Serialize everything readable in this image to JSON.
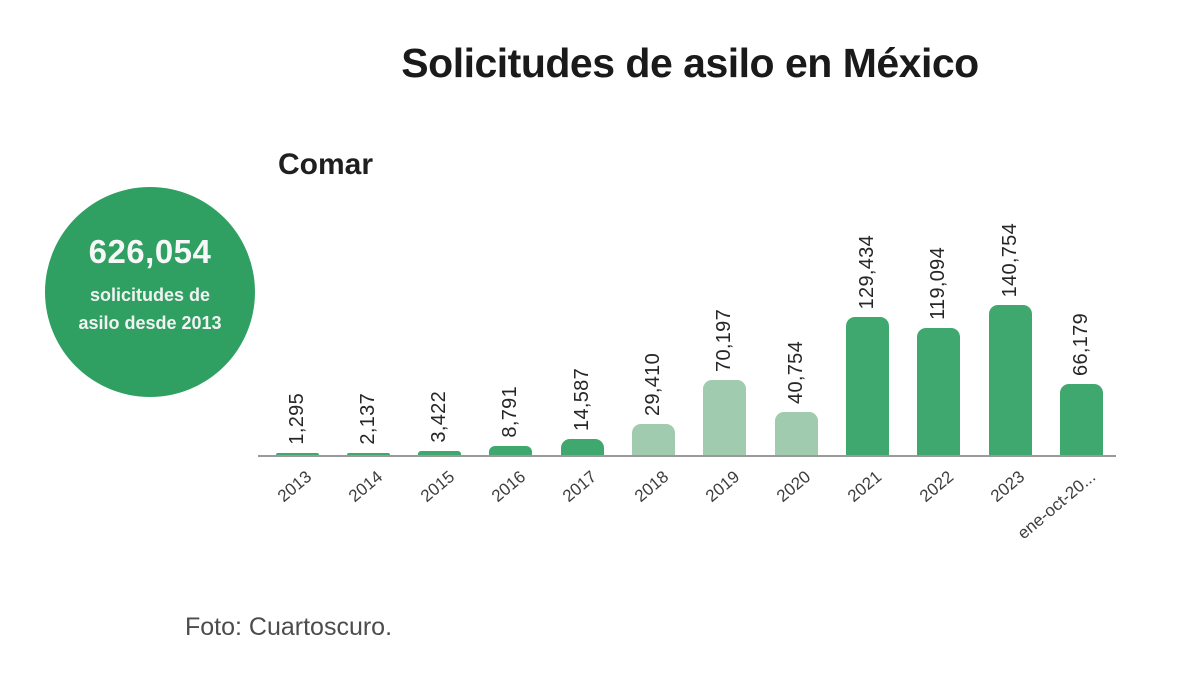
{
  "header": {
    "title": "Solicitudes de asilo en México",
    "subtitle": "Comar"
  },
  "badge": {
    "value": "626,054",
    "line1": "solicitudes de",
    "line2": "asilo desde 2013"
  },
  "footer": {
    "credit": "Foto: Cuartoscuro."
  },
  "colors": {
    "bar_dark": "#3fa86e",
    "bar_light": "#a0cbae",
    "badge_bg": "#2fa062",
    "axis": "#9a9a9a",
    "title_text": "#1a1a1a",
    "badge_text": "#f7f7f7"
  },
  "chart_data": {
    "type": "bar",
    "title": "Solicitudes de asilo en México",
    "subtitle": "Comar",
    "categories": [
      "2013",
      "2014",
      "2015",
      "2016",
      "2017",
      "2018",
      "2019",
      "2020",
      "2021",
      "2022",
      "2023",
      "ene-oct-20..."
    ],
    "values": [
      1295,
      2137,
      3422,
      8791,
      14587,
      29410,
      70197,
      40754,
      129434,
      119094,
      140754,
      66179
    ],
    "value_labels": [
      "1,295",
      "2,137",
      "3,422",
      "8,791",
      "14,587",
      "29,410",
      "70,197",
      "40,754",
      "129,434",
      "119,094",
      "140,754",
      "66,179"
    ],
    "bar_styles": [
      "dark",
      "dark",
      "dark",
      "dark",
      "dark",
      "light",
      "light",
      "light",
      "dark",
      "dark",
      "dark",
      "dark"
    ],
    "annotation": "626,054 solicitudes de asilo desde 2013",
    "xlabel": "",
    "ylabel": "",
    "ylim": [
      0,
      140754
    ],
    "grid": false,
    "legend": false,
    "value_label_rotation": -90,
    "tick_label_rotation": -40
  }
}
